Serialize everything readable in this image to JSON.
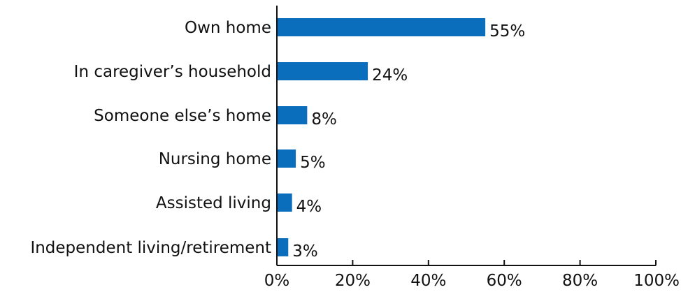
{
  "chart_data": {
    "type": "bar",
    "orientation": "horizontal",
    "categories": [
      "Own home",
      "In caregiver’s household",
      "Someone else’s home",
      "Nursing home",
      "Assisted living",
      "Independent living/retirement"
    ],
    "values": [
      55,
      24,
      8,
      5,
      4,
      3
    ],
    "value_labels": [
      "55%",
      "24%",
      "8%",
      "5%",
      "4%",
      "3%"
    ],
    "xlim": [
      0,
      100
    ],
    "x_ticks": [
      0,
      20,
      40,
      60,
      80,
      100
    ],
    "x_tick_labels": [
      "0%",
      "20%",
      "40%",
      "60%",
      "80%",
      "100%"
    ],
    "title": "",
    "xlabel": "",
    "ylabel": "",
    "grid": false,
    "bar_color": "#0a6ebd",
    "axis_color": "#111111"
  }
}
